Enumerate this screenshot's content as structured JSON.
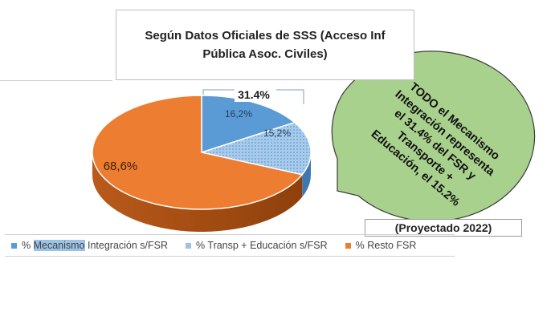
{
  "title": {
    "line1": "Según Datos Oficiales de SSS (Acceso Inf",
    "line2": "Pública Asoc. Civiles)"
  },
  "callout": {
    "lines": [
      "TODO el Mecanismo",
      "Integración representa",
      "el 31.4% del FSR y",
      "Transporte +",
      "Educación, el 15.2%"
    ],
    "fill": "#a9d18e",
    "stroke": "#3a3a3a"
  },
  "projected_label": "(Proyectado 2022)",
  "chart_data": {
    "type": "pie",
    "title": "Según Datos Oficiales de SSS (Acceso Inf Pública Asoc. Civiles)",
    "three_d": true,
    "slices": [
      {
        "name": "% Mecanismo Integración s/FSR",
        "value": 16.2,
        "label": "16,2%",
        "color": "#5b9bd5"
      },
      {
        "name": "% Transp + Educación s/FSR",
        "value": 15.2,
        "label": "15,2%",
        "color": "#9dc3e6",
        "pattern": "dotted"
      },
      {
        "name": "% Resto FSR",
        "value": 68.6,
        "label": "68,6%",
        "color": "#ed7d31"
      }
    ],
    "annotation": "31.4%",
    "legend_position": "bottom"
  },
  "legend": {
    "items": [
      {
        "prefix": "% ",
        "highlight": "Mecanismo",
        "suffix": " Integración s/FSR",
        "color": "#5b9bd5"
      },
      {
        "prefix": "% Transp + Educación s/FSR",
        "highlight": "",
        "suffix": "",
        "color": "#9dc3e6"
      },
      {
        "prefix": "% Resto FSR",
        "highlight": "",
        "suffix": "",
        "color": "#ed7d31"
      }
    ]
  }
}
